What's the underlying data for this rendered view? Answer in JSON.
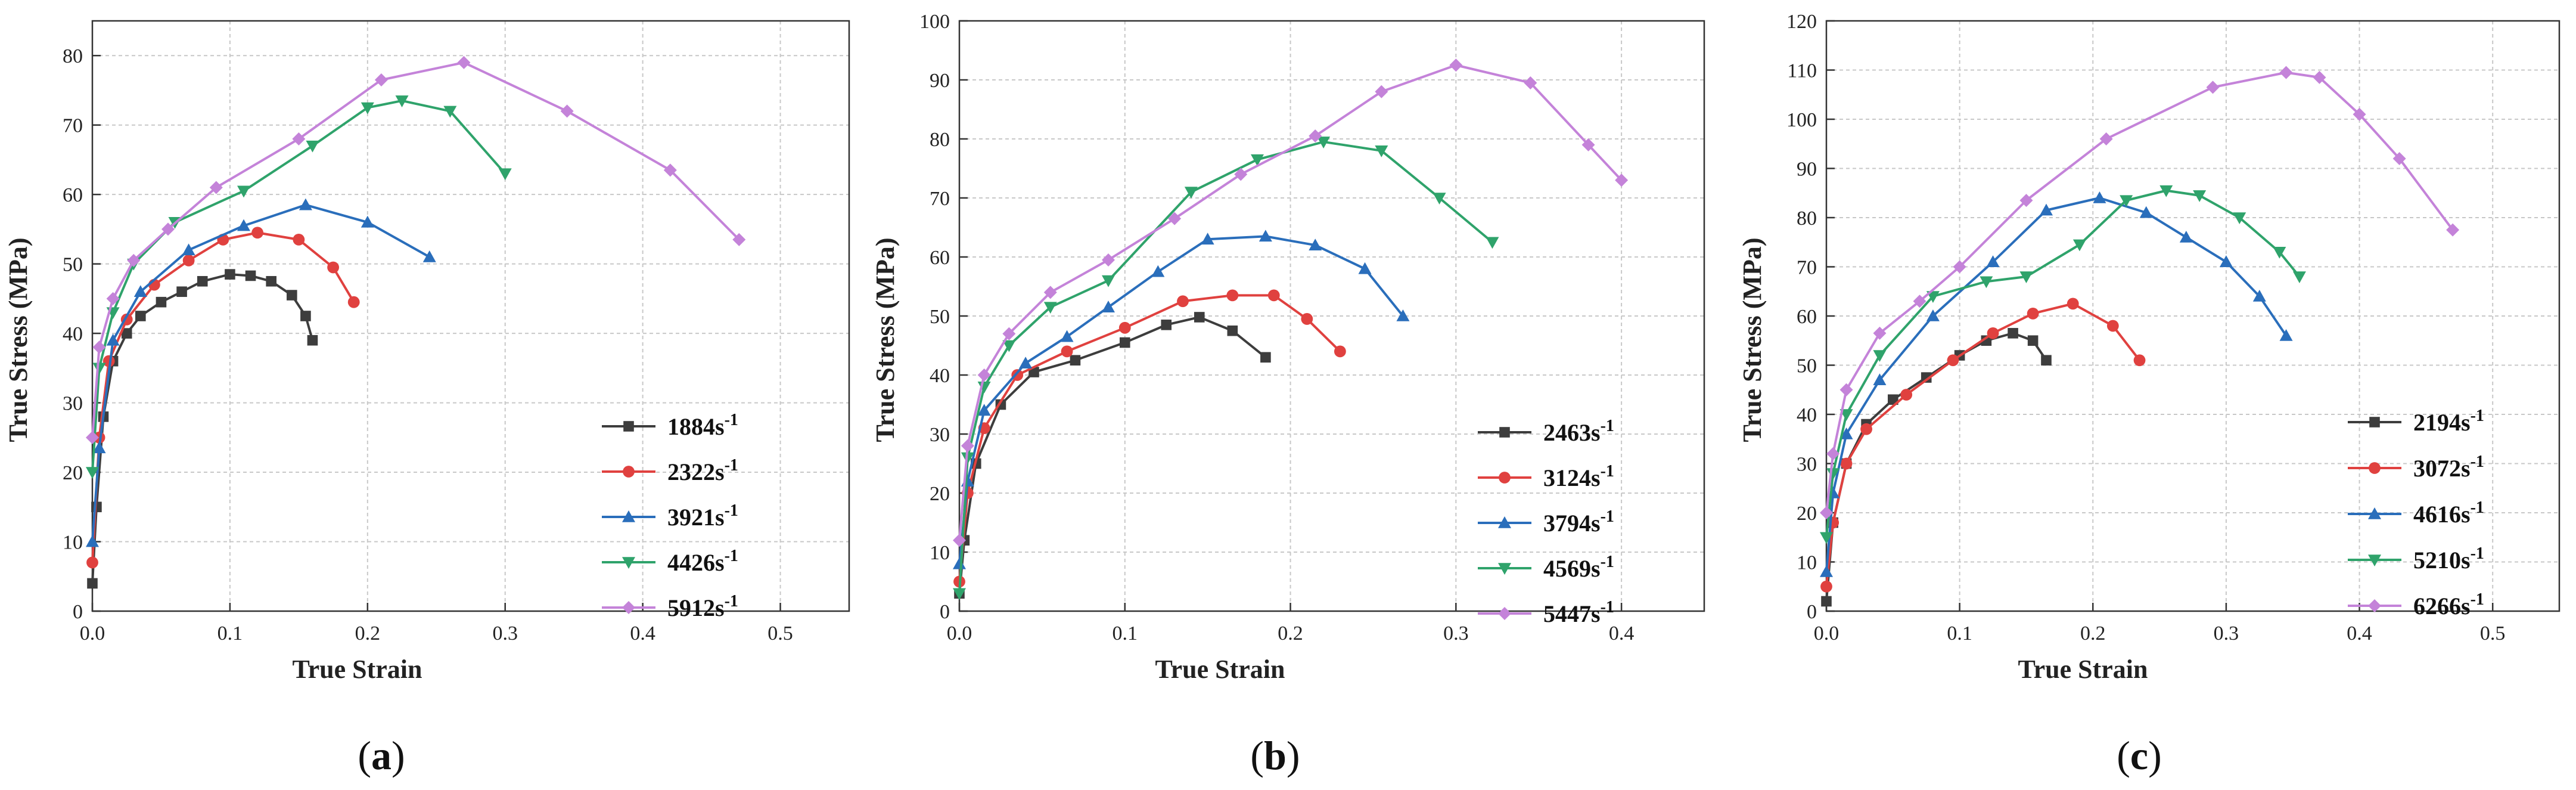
{
  "figure": {
    "panels": [
      {
        "label_open": "(",
        "letter": "a",
        "label_close": ")"
      },
      {
        "label_open": "(",
        "letter": "b",
        "label_close": ")"
      },
      {
        "label_open": "(",
        "letter": "c",
        "label_close": ")"
      }
    ]
  },
  "chart_data": [
    {
      "type": "line",
      "title": "",
      "xlabel": "True Strain",
      "ylabel": "True Stress (MPa)",
      "xlim": [
        0.0,
        0.55
      ],
      "ylim": [
        0,
        85
      ],
      "xticks": [
        0.0,
        0.1,
        0.2,
        0.3,
        0.4,
        0.5
      ],
      "xtick_labels": [
        "0.0",
        "0.1",
        "0.2",
        "0.3",
        "0.4",
        "0.5"
      ],
      "yticks": [
        0,
        10,
        20,
        30,
        40,
        50,
        60,
        70,
        80
      ],
      "ytick_labels": [
        "0",
        "10",
        "20",
        "30",
        "40",
        "50",
        "60",
        "70",
        "80"
      ],
      "grid": true,
      "legend_position": "bottom-right",
      "series": [
        {
          "name": "1884",
          "unit": "s",
          "exp": "-1",
          "color": "#3d3d3d",
          "marker": "square",
          "x": [
            0.0,
            0.003,
            0.008,
            0.015,
            0.025,
            0.035,
            0.05,
            0.065,
            0.08,
            0.1,
            0.115,
            0.13,
            0.145,
            0.155,
            0.16
          ],
          "y": [
            4,
            15,
            28,
            36,
            40,
            42.5,
            44.5,
            46,
            47.5,
            48.5,
            48.3,
            47.5,
            45.5,
            42.5,
            39
          ]
        },
        {
          "name": "2322",
          "unit": "s",
          "exp": "-1",
          "color": "#e0413f",
          "marker": "circle",
          "x": [
            0.0,
            0.005,
            0.012,
            0.025,
            0.045,
            0.07,
            0.095,
            0.12,
            0.15,
            0.175,
            0.19
          ],
          "y": [
            7,
            25,
            36,
            42,
            47,
            50.5,
            53.5,
            54.5,
            53.5,
            49.5,
            44.5
          ]
        },
        {
          "name": "3921",
          "unit": "s",
          "exp": "-1",
          "color": "#2a6ebb",
          "marker": "triangle-up",
          "x": [
            0.0,
            0.005,
            0.015,
            0.035,
            0.07,
            0.11,
            0.155,
            0.2,
            0.245
          ],
          "y": [
            10,
            23.5,
            39,
            46,
            52,
            55.5,
            58.5,
            56,
            51
          ]
        },
        {
          "name": "4426",
          "unit": "s",
          "exp": "-1",
          "color": "#2fa36b",
          "marker": "triangle-down",
          "x": [
            0.0,
            0.005,
            0.015,
            0.03,
            0.06,
            0.11,
            0.16,
            0.2,
            0.225,
            0.26,
            0.3
          ],
          "y": [
            20,
            35,
            43,
            50,
            56,
            60.5,
            67,
            72.5,
            73.5,
            72,
            63
          ]
        },
        {
          "name": "5912",
          "unit": "s",
          "exp": "-1",
          "color": "#c483d9",
          "marker": "diamond",
          "x": [
            0.0,
            0.005,
            0.015,
            0.03,
            0.055,
            0.09,
            0.15,
            0.21,
            0.27,
            0.345,
            0.42,
            0.47
          ],
          "y": [
            25,
            38,
            45,
            50.5,
            55,
            61,
            68,
            76.5,
            79,
            72,
            63.5,
            53.5
          ]
        }
      ]
    },
    {
      "type": "line",
      "title": "",
      "xlabel": "True Strain",
      "ylabel": "True Stress (MPa)",
      "xlim": [
        0.0,
        0.45
      ],
      "ylim": [
        0,
        100
      ],
      "xticks": [
        0.0,
        0.1,
        0.2,
        0.3,
        0.4
      ],
      "xtick_labels": [
        "0.0",
        "0.1",
        "0.2",
        "0.3",
        "0.4"
      ],
      "yticks": [
        0,
        10,
        20,
        30,
        40,
        50,
        60,
        70,
        80,
        90,
        100
      ],
      "ytick_labels": [
        "0",
        "10",
        "20",
        "30",
        "40",
        "50",
        "60",
        "70",
        "80",
        "90",
        "100"
      ],
      "grid": true,
      "legend_position": "bottom-right",
      "series": [
        {
          "name": "2463",
          "unit": "s",
          "exp": "-1",
          "color": "#3d3d3d",
          "marker": "square",
          "x": [
            0.0,
            0.003,
            0.01,
            0.025,
            0.045,
            0.07,
            0.1,
            0.125,
            0.145,
            0.165,
            0.185
          ],
          "y": [
            3,
            12,
            25,
            35,
            40.5,
            42.5,
            45.5,
            48.5,
            49.8,
            47.5,
            43
          ]
        },
        {
          "name": "3124",
          "unit": "s",
          "exp": "-1",
          "color": "#e0413f",
          "marker": "circle",
          "x": [
            0.0,
            0.005,
            0.015,
            0.035,
            0.065,
            0.1,
            0.135,
            0.165,
            0.19,
            0.21,
            0.23
          ],
          "y": [
            5,
            20,
            31,
            40,
            44,
            48,
            52.5,
            53.5,
            53.5,
            49.5,
            44
          ]
        },
        {
          "name": "3794",
          "unit": "s",
          "exp": "-1",
          "color": "#2a6ebb",
          "marker": "triangle-up",
          "x": [
            0.0,
            0.005,
            0.015,
            0.04,
            0.065,
            0.09,
            0.12,
            0.15,
            0.185,
            0.215,
            0.245,
            0.268
          ],
          "y": [
            8,
            22,
            34,
            42,
            46.5,
            51.5,
            57.5,
            63,
            63.5,
            62,
            58,
            50
          ]
        },
        {
          "name": "4569",
          "unit": "s",
          "exp": "-1",
          "color": "#2fa36b",
          "marker": "triangle-down",
          "x": [
            0.0,
            0.005,
            0.015,
            0.03,
            0.055,
            0.09,
            0.14,
            0.18,
            0.22,
            0.255,
            0.29,
            0.322
          ],
          "y": [
            3,
            26,
            38,
            45,
            51.5,
            56,
            71,
            76.5,
            79.5,
            78,
            70,
            62.5
          ]
        },
        {
          "name": "5447",
          "unit": "s",
          "exp": "-1",
          "color": "#c483d9",
          "marker": "diamond",
          "x": [
            0.0,
            0.005,
            0.015,
            0.03,
            0.055,
            0.09,
            0.13,
            0.17,
            0.215,
            0.255,
            0.3,
            0.345,
            0.38,
            0.4
          ],
          "y": [
            12,
            28,
            40,
            47,
            54,
            59.5,
            66.5,
            74,
            80.5,
            88,
            92.5,
            89.5,
            79,
            73
          ]
        }
      ]
    },
    {
      "type": "line",
      "title": "",
      "xlabel": "True Strain",
      "ylabel": "True Stress (MPa)",
      "xlim": [
        0.0,
        0.55
      ],
      "ylim": [
        0,
        120
      ],
      "xticks": [
        0.0,
        0.1,
        0.2,
        0.3,
        0.4,
        0.5
      ],
      "xtick_labels": [
        "0.0",
        "0.1",
        "0.2",
        "0.3",
        "0.4",
        "0.5"
      ],
      "yticks": [
        0,
        10,
        20,
        30,
        40,
        50,
        60,
        70,
        80,
        90,
        100,
        110,
        120
      ],
      "ytick_labels": [
        "0",
        "10",
        "20",
        "30",
        "40",
        "50",
        "60",
        "70",
        "80",
        "90",
        "100",
        "110",
        "120"
      ],
      "grid": true,
      "legend_position": "bottom-right",
      "series": [
        {
          "name": "2194",
          "unit": "s",
          "exp": "-1",
          "color": "#3d3d3d",
          "marker": "square",
          "x": [
            0.0,
            0.005,
            0.015,
            0.03,
            0.05,
            0.075,
            0.1,
            0.12,
            0.14,
            0.155,
            0.165
          ],
          "y": [
            2,
            18,
            30,
            38,
            43,
            47.5,
            52,
            55,
            56.5,
            55,
            51
          ]
        },
        {
          "name": "3072",
          "unit": "s",
          "exp": "-1",
          "color": "#e0413f",
          "marker": "circle",
          "x": [
            0.0,
            0.005,
            0.015,
            0.03,
            0.06,
            0.095,
            0.125,
            0.155,
            0.185,
            0.215,
            0.235
          ],
          "y": [
            5,
            18,
            30,
            37,
            44,
            51,
            56.5,
            60.5,
            62.5,
            58,
            51
          ]
        },
        {
          "name": "4616",
          "unit": "s",
          "exp": "-1",
          "color": "#2a6ebb",
          "marker": "triangle-up",
          "x": [
            0.0,
            0.005,
            0.015,
            0.04,
            0.08,
            0.125,
            0.165,
            0.205,
            0.24,
            0.27,
            0.3,
            0.325,
            0.345
          ],
          "y": [
            8,
            24,
            36,
            47,
            60,
            71,
            81.5,
            84,
            81,
            76,
            71,
            64,
            56
          ]
        },
        {
          "name": "5210",
          "unit": "s",
          "exp": "-1",
          "color": "#2fa36b",
          "marker": "triangle-down",
          "x": [
            0.0,
            0.005,
            0.015,
            0.04,
            0.08,
            0.12,
            0.15,
            0.19,
            0.225,
            0.255,
            0.28,
            0.31,
            0.34,
            0.355
          ],
          "y": [
            15,
            28,
            40,
            52,
            64,
            67,
            68,
            74.5,
            83.5,
            85.5,
            84.5,
            80,
            73,
            68
          ]
        },
        {
          "name": "6266",
          "unit": "s",
          "exp": "-1",
          "color": "#c483d9",
          "marker": "diamond",
          "x": [
            0.0,
            0.005,
            0.015,
            0.04,
            0.07,
            0.1,
            0.15,
            0.21,
            0.29,
            0.345,
            0.37,
            0.4,
            0.43,
            0.47
          ],
          "y": [
            20,
            32,
            45,
            56.5,
            63,
            70,
            83.5,
            96,
            106.5,
            109.5,
            108.5,
            101,
            92,
            77.5
          ]
        }
      ]
    }
  ]
}
